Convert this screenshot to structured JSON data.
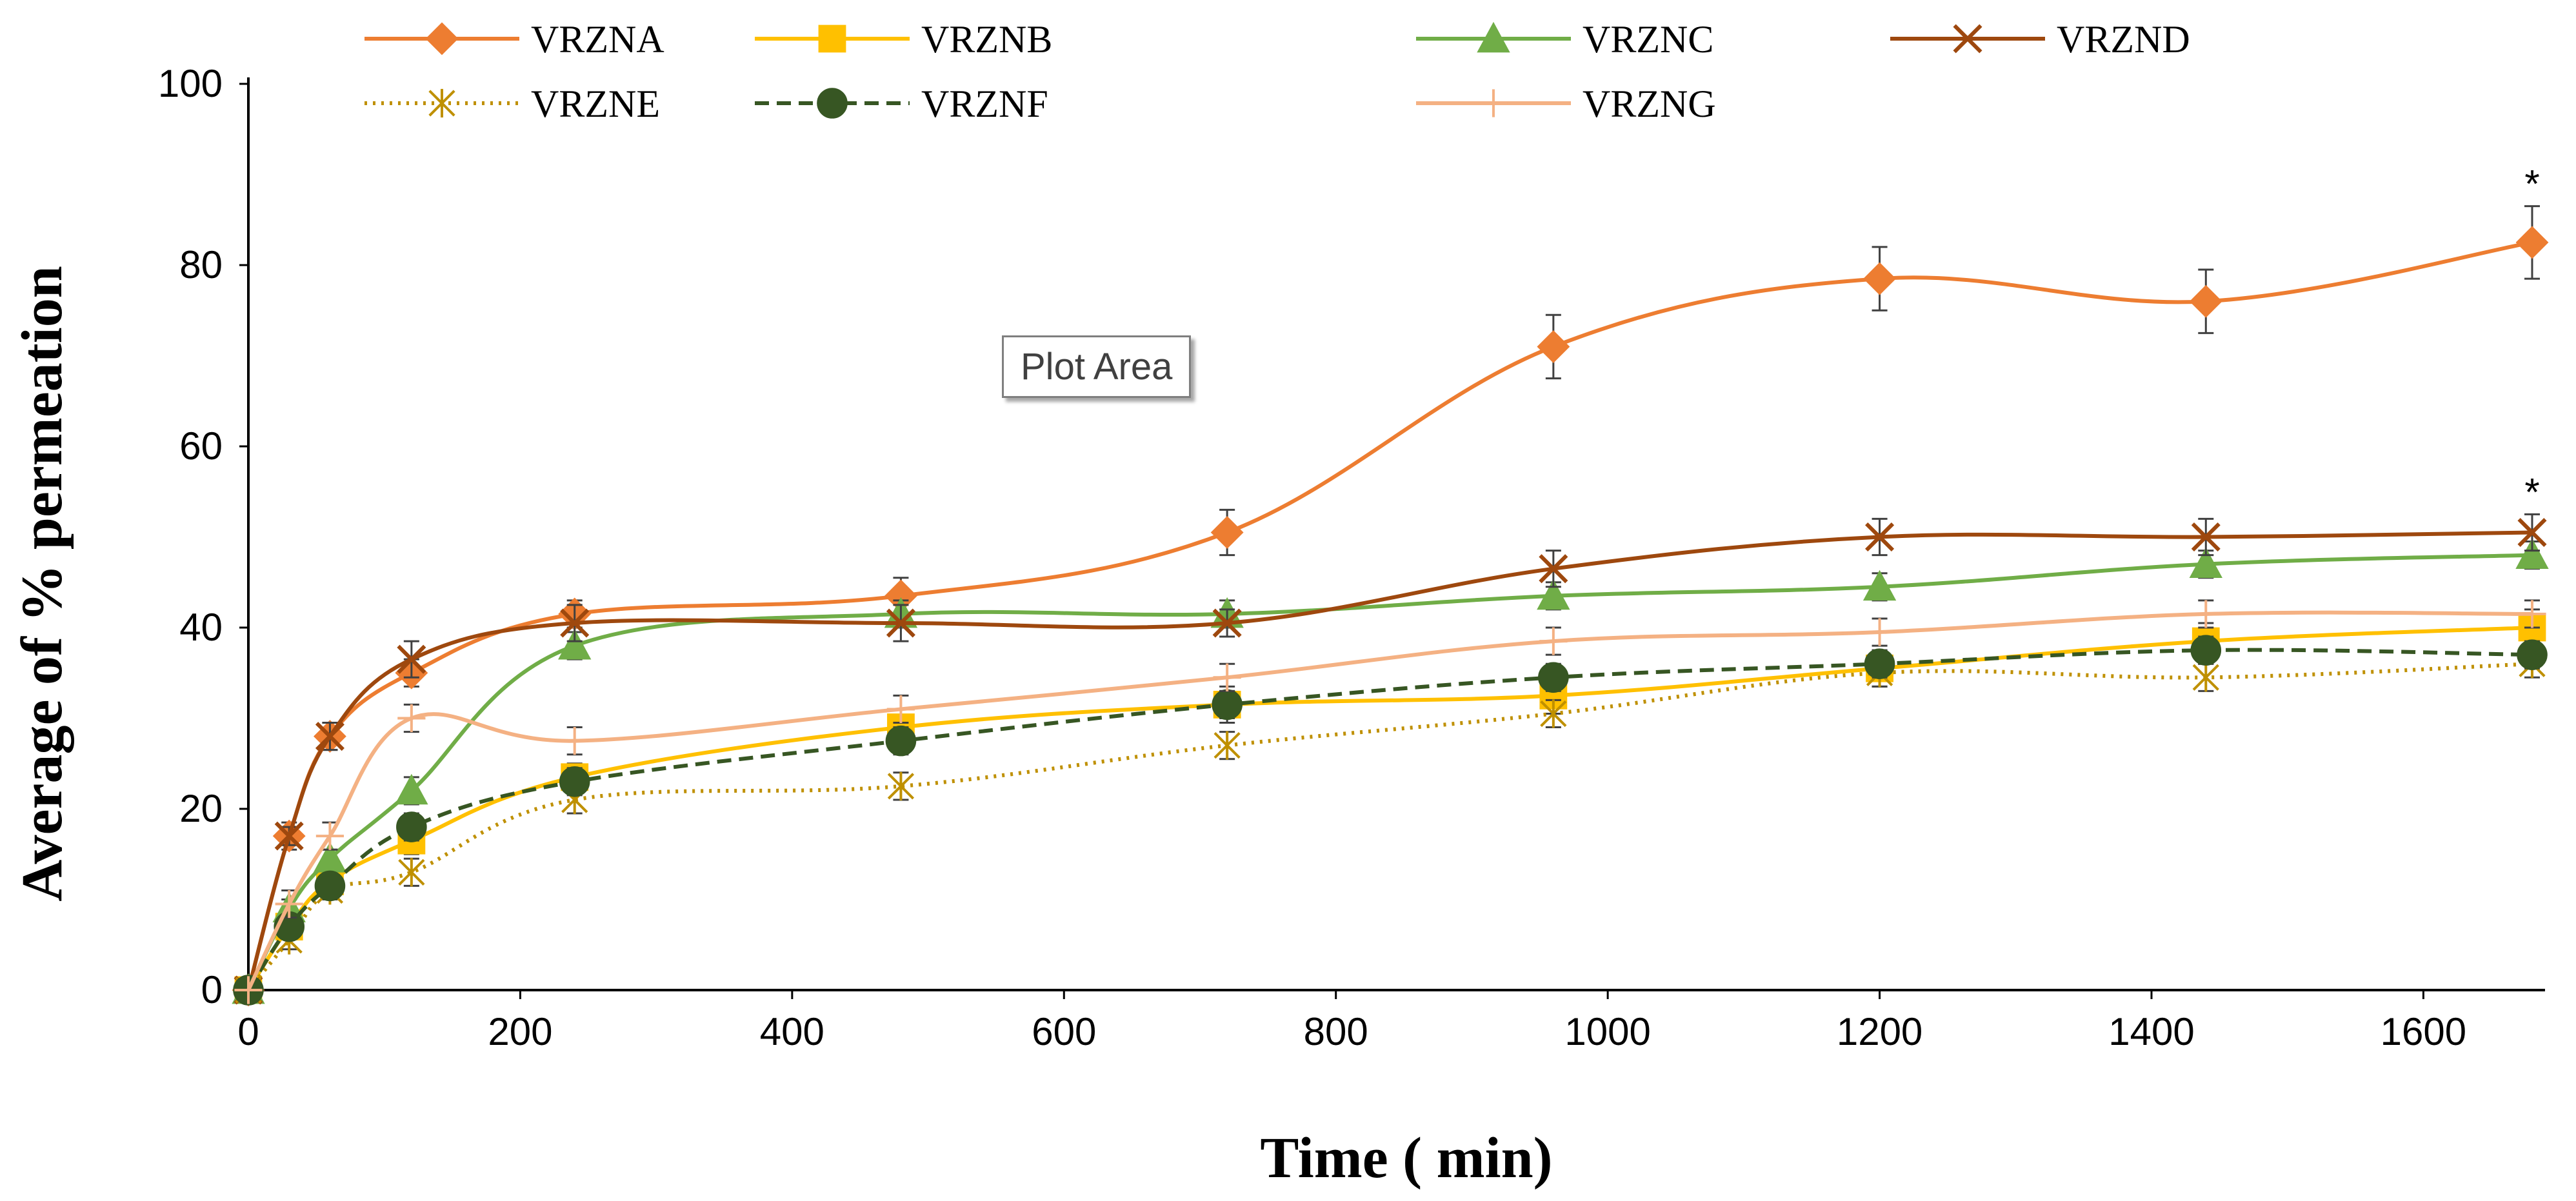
{
  "chart_data": {
    "type": "line",
    "title": "",
    "xlabel": "Time ( min)",
    "ylabel": "Average of % permeation",
    "xlim": [
      0,
      1680
    ],
    "ylim": [
      0,
      100
    ],
    "xticks": [
      0,
      200,
      400,
      600,
      800,
      1000,
      1200,
      1400,
      1600
    ],
    "yticks": [
      0,
      20,
      40,
      60,
      80,
      100
    ],
    "x": [
      0,
      30,
      60,
      120,
      240,
      480,
      720,
      960,
      1200,
      1440,
      1680
    ],
    "grid": false,
    "legend_position": "top",
    "tooltip": "Plot Area",
    "series": [
      {
        "name": "VRZNA",
        "color": "#ED7D31",
        "marker": "diamond",
        "dash": "solid",
        "values": [
          0,
          17,
          28,
          35,
          41.5,
          43.5,
          50.5,
          71,
          78.5,
          76,
          82.5
        ],
        "errors": [
          0,
          1.5,
          1.5,
          1.5,
          1.5,
          2,
          2.5,
          3.5,
          3.5,
          3.5,
          4
        ],
        "annotation": "*"
      },
      {
        "name": "VRZNB",
        "color": "#FFC000",
        "marker": "square",
        "dash": "solid",
        "values": [
          0,
          7,
          12,
          16.5,
          23.5,
          29,
          31.5,
          32.5,
          35.5,
          38.5,
          40
        ],
        "errors": [
          0,
          1,
          1,
          1.5,
          1.5,
          2,
          2,
          2,
          2,
          2,
          2
        ]
      },
      {
        "name": "VRZNC",
        "color": "#70AD47",
        "marker": "triangle",
        "dash": "solid",
        "values": [
          0,
          9,
          14.5,
          22,
          38,
          41.5,
          41.5,
          43.5,
          44.5,
          47,
          48
        ],
        "errors": [
          0,
          1,
          1,
          1.5,
          1.5,
          1.5,
          1.5,
          1.5,
          1.5,
          1.5,
          1.5
        ]
      },
      {
        "name": "VRZND",
        "color": "#9E480E",
        "marker": "x",
        "dash": "solid",
        "values": [
          0,
          17,
          28,
          36.5,
          40.5,
          40.5,
          40.5,
          46.5,
          50,
          50,
          50.5
        ],
        "errors": [
          0,
          1,
          1.5,
          2,
          2,
          2,
          1.5,
          2,
          2,
          2,
          2
        ],
        "annotation": "*"
      },
      {
        "name": "VRZNE",
        "color": "#BF9000",
        "marker": "asterisk",
        "dash": "dotted",
        "values": [
          0,
          5.5,
          11,
          13,
          21,
          22.5,
          27,
          30.5,
          35,
          34.5,
          36
        ],
        "errors": [
          0,
          1,
          1,
          1.5,
          1.5,
          1.5,
          1.5,
          1.5,
          1.5,
          1.5,
          1.5
        ]
      },
      {
        "name": "VRZNF",
        "color": "#375623",
        "marker": "circle",
        "dash": "dashed",
        "values": [
          0,
          7,
          11.5,
          18,
          23,
          27.5,
          31.5,
          34.5,
          36,
          37.5,
          37
        ],
        "errors": [
          0,
          1,
          1,
          1.5,
          1.5,
          1.5,
          1.5,
          1.5,
          1.5,
          1.5,
          1.5
        ]
      },
      {
        "name": "VRZNG",
        "color": "#F4B183",
        "marker": "plus",
        "dash": "solid",
        "values": [
          0,
          9.5,
          17,
          30,
          27.5,
          31,
          34.5,
          38.5,
          39.5,
          41.5,
          41.5
        ],
        "errors": [
          0,
          1.5,
          1.5,
          1.5,
          1.5,
          1.5,
          1.5,
          1.5,
          1.5,
          1.5,
          1.5
        ]
      }
    ]
  }
}
